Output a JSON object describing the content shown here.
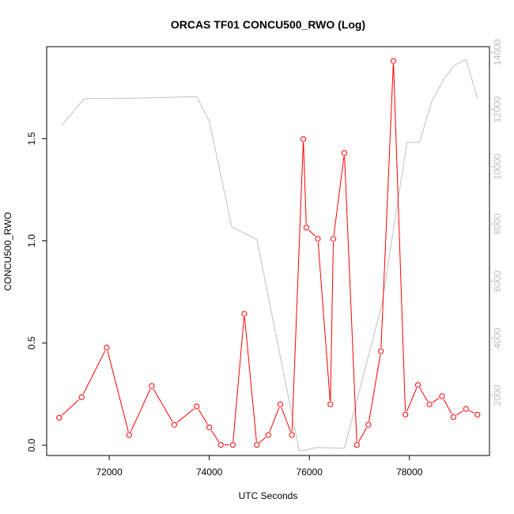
{
  "chart_data": {
    "type": "line",
    "title": "ORCAS TF01 CONCU500_RWO (Log)",
    "xlabel": "UTC Seconds",
    "ylabel": "CONCU500_RWO",
    "xlim": [
      70750,
      79600
    ],
    "ylim": [
      -0.05,
      1.95
    ],
    "y2lim": [
      -100,
      14200
    ],
    "x_ticks": [
      72000,
      74000,
      76000,
      78000
    ],
    "y_ticks": [
      0.0,
      0.5,
      1.0,
      1.5
    ],
    "y_tick_labels": [
      "0.0",
      "0.5",
      "1.0",
      "1.5"
    ],
    "y2_ticks": [
      2000,
      4000,
      6000,
      8000,
      10000,
      12000,
      14000
    ],
    "grid": false,
    "series": [
      {
        "axis": "left",
        "color": "#ff0000",
        "marker": "open-circle",
        "points": [
          [
            71000,
            0.135
          ],
          [
            71450,
            0.235
          ],
          [
            71950,
            0.478
          ],
          [
            72400,
            0.05
          ],
          [
            72850,
            0.29
          ],
          [
            73300,
            0.1
          ],
          [
            73750,
            0.19
          ],
          [
            74000,
            0.088
          ],
          [
            74230,
            0.002
          ],
          [
            74470,
            0.002
          ],
          [
            74700,
            0.643
          ],
          [
            74950,
            0.002
          ],
          [
            75180,
            0.05
          ],
          [
            75420,
            0.2
          ],
          [
            75650,
            0.05
          ],
          [
            75880,
            1.498
          ],
          [
            75940,
            1.065
          ],
          [
            76170,
            1.01
          ],
          [
            76420,
            0.2
          ],
          [
            76480,
            1.01
          ],
          [
            76700,
            1.43
          ],
          [
            76950,
            0.002
          ],
          [
            77180,
            0.1
          ],
          [
            77430,
            0.46
          ],
          [
            77680,
            1.88
          ],
          [
            77920,
            0.15
          ],
          [
            78170,
            0.295
          ],
          [
            78400,
            0.2
          ],
          [
            78650,
            0.24
          ],
          [
            78880,
            0.138
          ],
          [
            79130,
            0.178
          ],
          [
            79360,
            0.15
          ]
        ]
      },
      {
        "axis": "right",
        "color": "#c0c0c0",
        "marker": "none",
        "points": [
          [
            71050,
            11450
          ],
          [
            71500,
            12380
          ],
          [
            72500,
            12400
          ],
          [
            73750,
            12450
          ],
          [
            74000,
            11600
          ],
          [
            74450,
            7900
          ],
          [
            74950,
            7450
          ],
          [
            75800,
            50
          ],
          [
            76150,
            180
          ],
          [
            76700,
            150
          ],
          [
            77450,
            5200
          ],
          [
            77950,
            10850
          ],
          [
            78200,
            10850
          ],
          [
            78450,
            12300
          ],
          [
            78700,
            13100
          ],
          [
            78900,
            13550
          ],
          [
            79130,
            13750
          ],
          [
            79360,
            12400
          ]
        ]
      }
    ]
  },
  "colors": {
    "series_primary": "#ff0000",
    "series_secondary": "#c0c0c0",
    "right_axis": "#bdbdbd"
  }
}
